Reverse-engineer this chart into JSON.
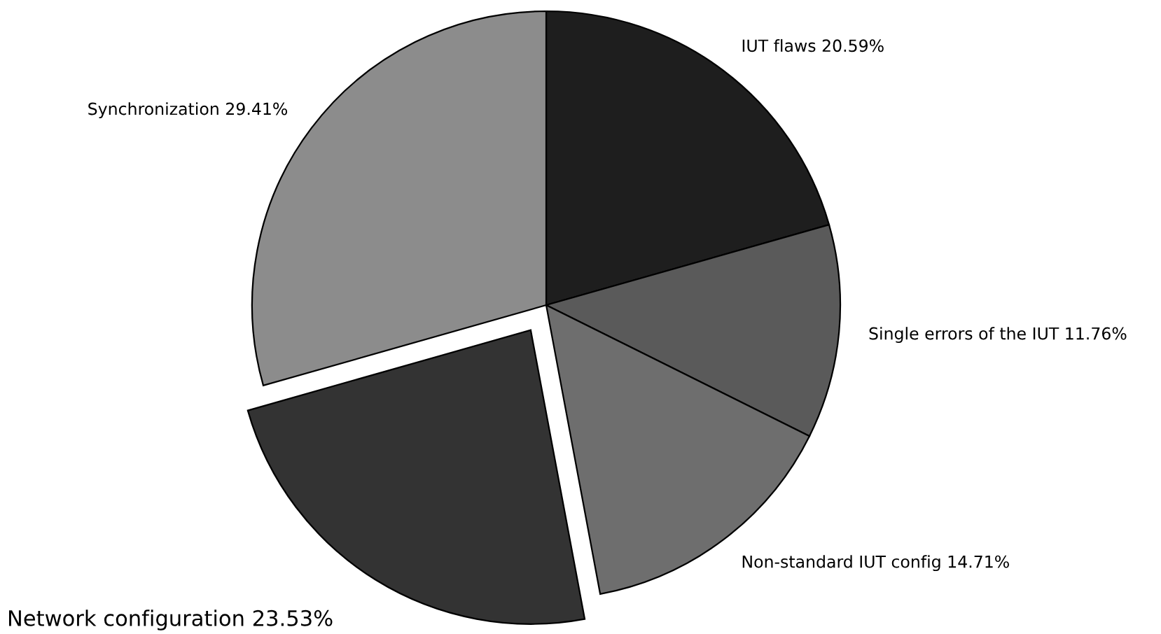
{
  "chart_data": {
    "type": "pie",
    "categories": [
      "IUT flaws",
      "Single errors of the IUT",
      "Non-standard IUT config",
      "Network configuration",
      "Synchronization"
    ],
    "values": [
      20.59,
      11.76,
      14.71,
      23.53,
      29.41
    ],
    "value_labels": [
      "20.59%",
      "11.76%",
      "14.71%",
      "23.53%",
      "29.41%"
    ],
    "colors": [
      "#1e1e1e",
      "#5a5a5a",
      "#6e6e6e",
      "#333333",
      "#8c8c8c"
    ],
    "legend": false
  }
}
